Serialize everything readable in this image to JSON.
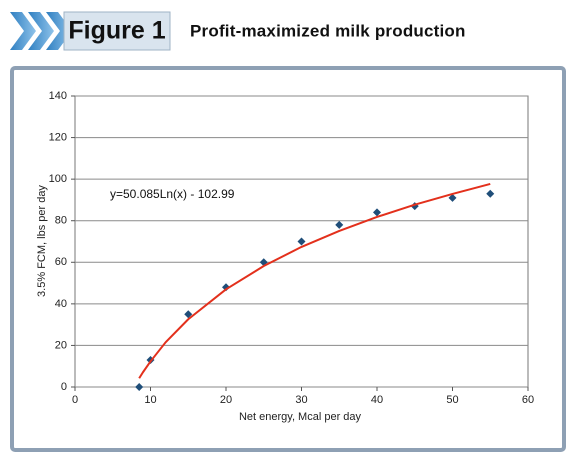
{
  "figure_label": "Figure 1",
  "chart_data": {
    "type": "scatter",
    "title": "Profit-maximized milk production",
    "x_label": "Net energy, Mcal per day",
    "y_label": "3.5% FCM, lbs per day",
    "annotation": "y=50.085Ln(x) - 102.99",
    "xlim": [
      0,
      60
    ],
    "xticks": [
      0,
      10,
      20,
      30,
      40,
      50,
      60
    ],
    "ylim": [
      0,
      140
    ],
    "yticks": [
      0,
      20,
      40,
      60,
      80,
      100,
      120,
      140
    ],
    "grid": true,
    "series": [
      {
        "color": "#1f4e79",
        "marker": "diamond",
        "x": [
          8.5,
          10,
          15,
          20,
          25,
          30,
          35,
          40,
          45,
          50,
          55
        ],
        "values": [
          0,
          13,
          35,
          48,
          60,
          70,
          78,
          84,
          87,
          91,
          93
        ]
      },
      {
        "color": "#e3301c",
        "marker": "none",
        "x": [
          8.5,
          9,
          10,
          12,
          15,
          20,
          25,
          30,
          35,
          40,
          45,
          50,
          55
        ],
        "values": [
          4.2,
          7.1,
          12.3,
          21.5,
          32.6,
          47.0,
          58.2,
          67.4,
          75.1,
          81.8,
          87.7,
          92.9,
          97.7
        ]
      }
    ]
  }
}
